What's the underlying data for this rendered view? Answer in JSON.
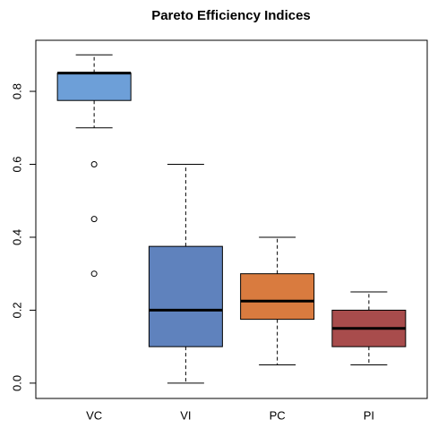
{
  "chart_data": {
    "type": "boxplot",
    "title": "Pareto Efficiency Indices",
    "categories": [
      "VC",
      "VI",
      "PC",
      "PI"
    ],
    "colors": [
      "#6d9fd8",
      "#5f82bd",
      "#d97b3f",
      "#a84c4c"
    ],
    "boxes": [
      {
        "min": 0.7,
        "q1": 0.775,
        "median": 0.85,
        "q3": 0.85,
        "max": 0.9,
        "outliers": [
          0.6,
          0.45,
          0.3
        ]
      },
      {
        "min": 0.0,
        "q1": 0.1,
        "median": 0.2,
        "q3": 0.375,
        "max": 0.6,
        "outliers": []
      },
      {
        "min": 0.05,
        "q1": 0.175,
        "median": 0.225,
        "q3": 0.3,
        "max": 0.4,
        "outliers": []
      },
      {
        "min": 0.05,
        "q1": 0.1,
        "median": 0.15,
        "q3": 0.2,
        "max": 0.25,
        "outliers": []
      }
    ],
    "ylim": [
      -0.042,
      0.94
    ],
    "yticks": [
      {
        "value": 0,
        "label": "0.0"
      },
      0.2,
      0.4,
      0.6,
      0.8
    ]
  }
}
